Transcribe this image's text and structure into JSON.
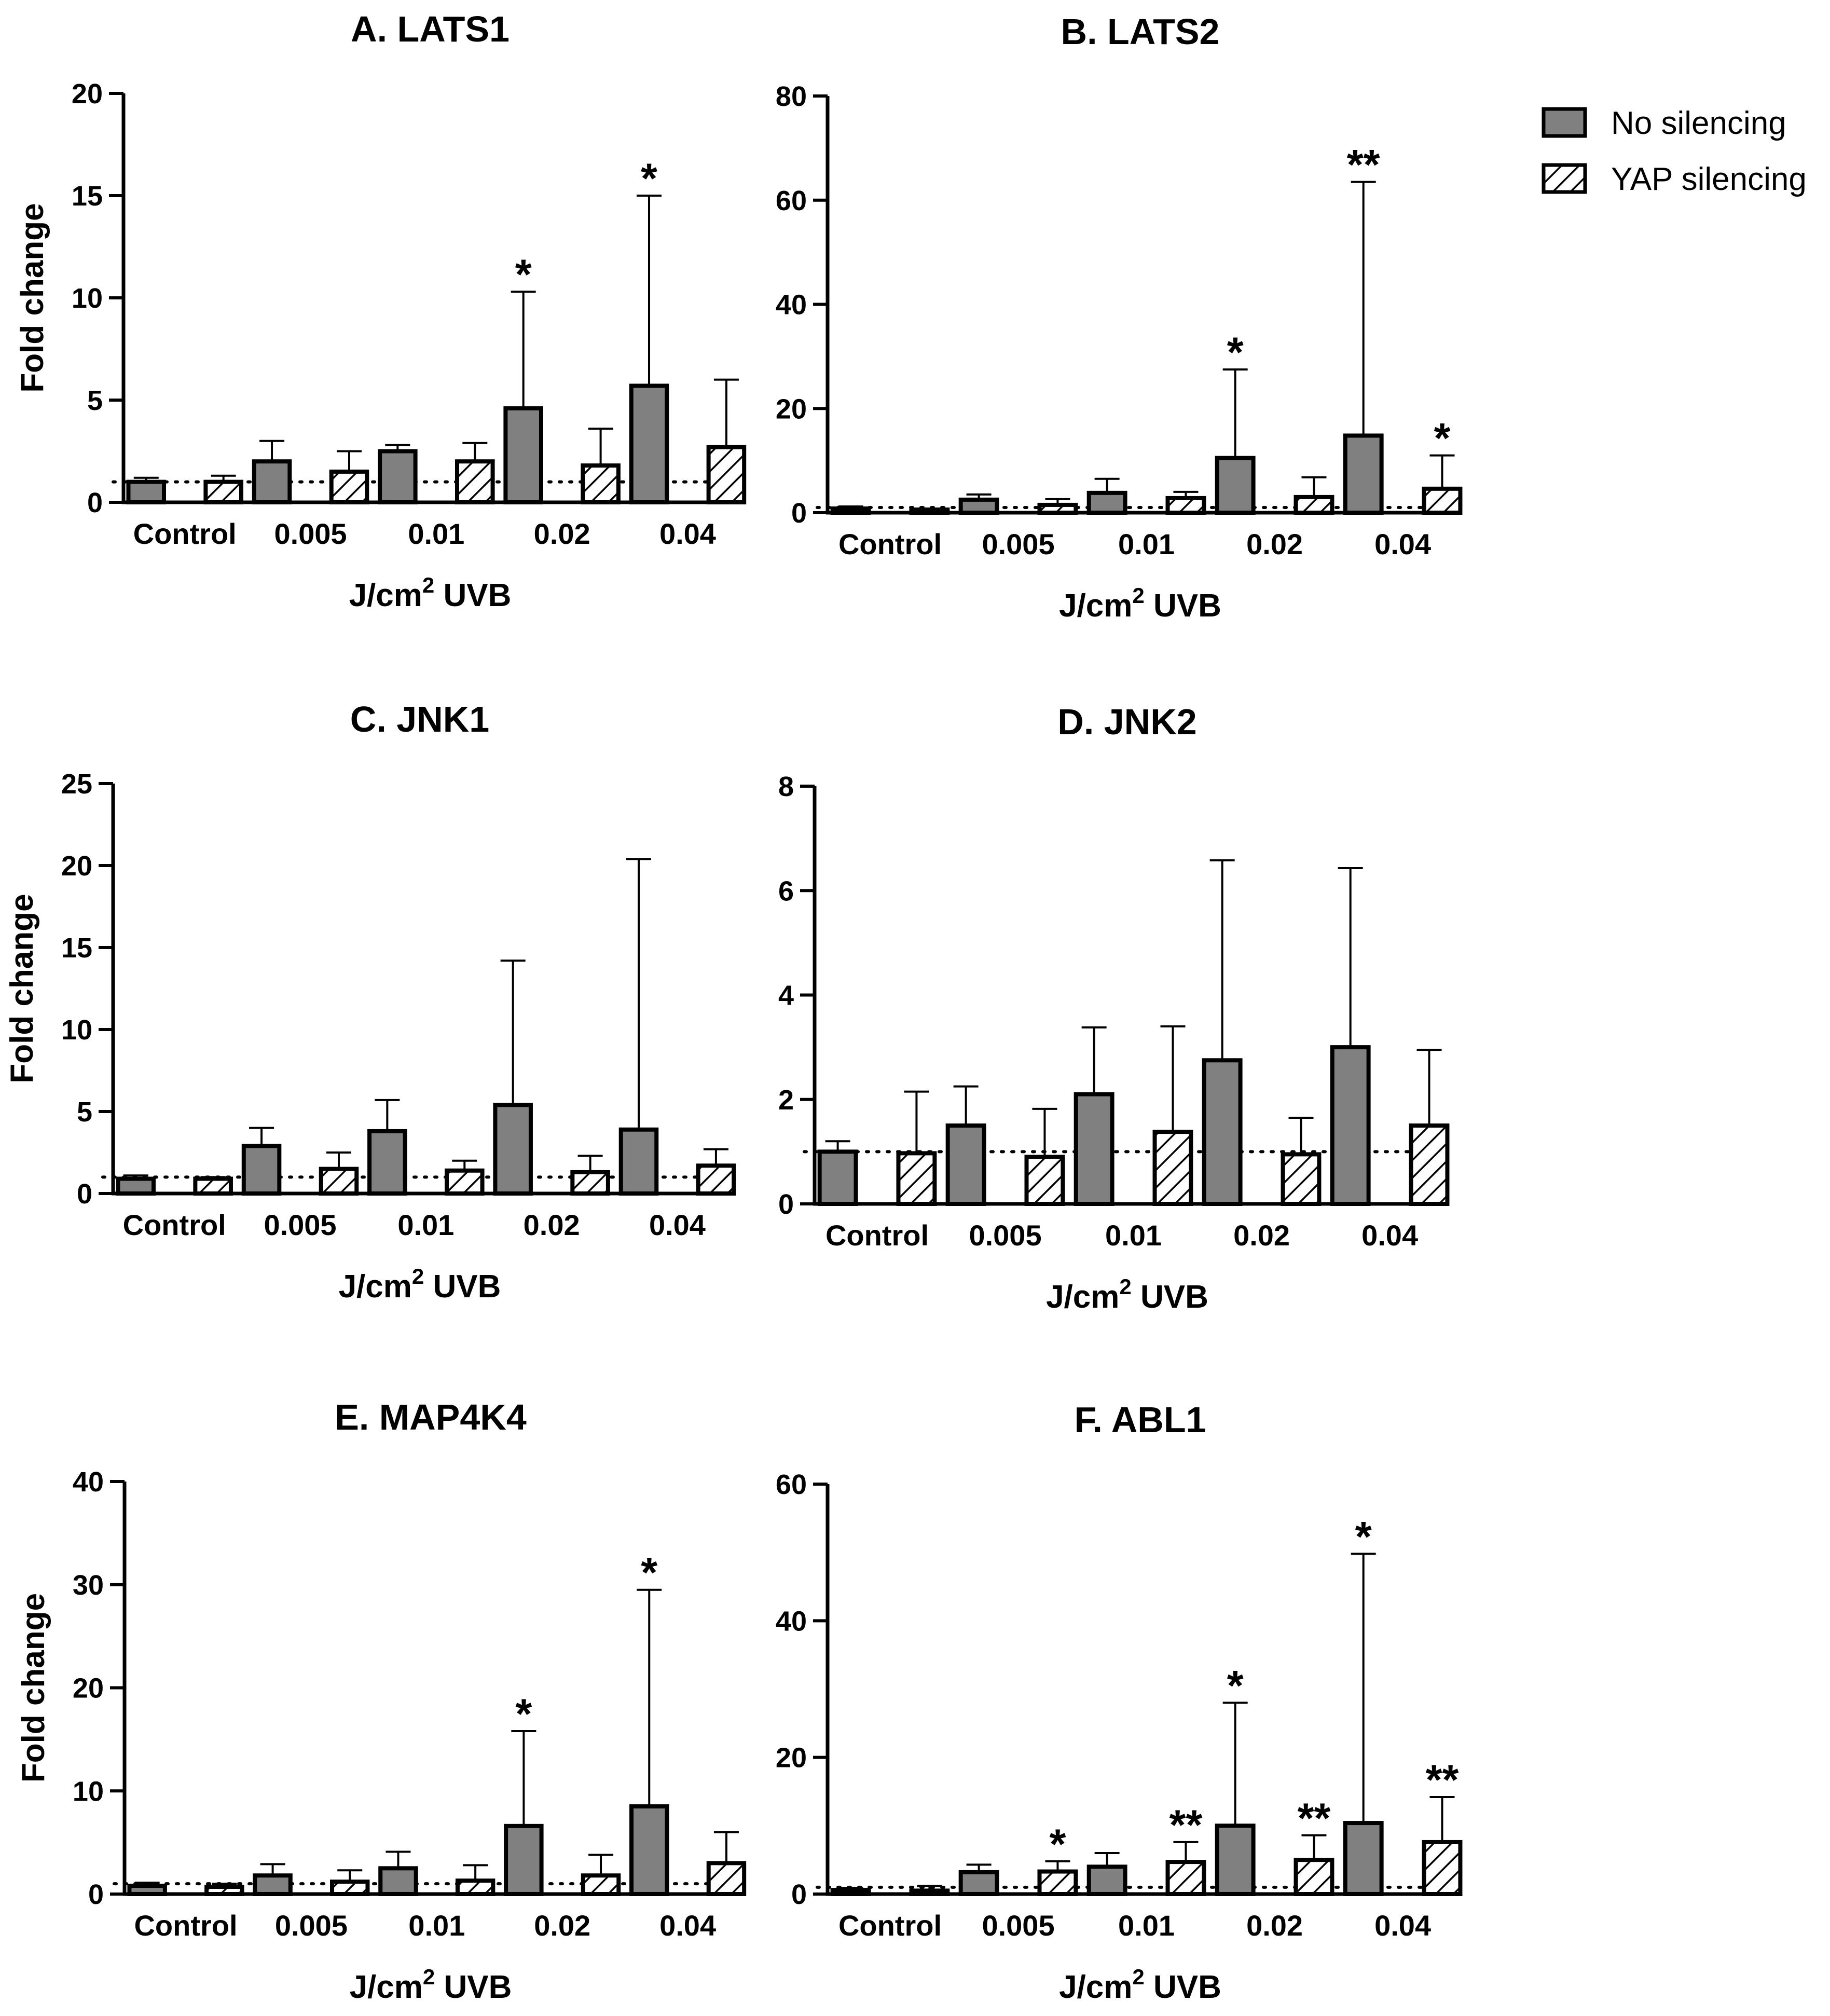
{
  "legend": [
    {
      "label": "No silencing",
      "style": "solid",
      "color": "#808080"
    },
    {
      "label": "YAP silencing",
      "style": "hatched",
      "color": "#ffffff"
    }
  ],
  "reference_line": 1,
  "chart_data": [
    {
      "type": "bar",
      "title": "A. LATS1",
      "xlabel": "J/cm",
      "xlabel_sup": "2",
      "xlabel_suffix": " UVB",
      "ylabel": "Fold change",
      "ylim": [
        0,
        20
      ],
      "yticks": [
        0,
        5,
        10,
        15,
        20
      ],
      "categories": [
        "Control",
        "0.005",
        "0.01",
        "0.02",
        "0.04"
      ],
      "series": [
        {
          "name": "No silencing",
          "values": [
            1.0,
            2.0,
            2.5,
            4.6,
            5.7
          ],
          "err": [
            1.2,
            3.0,
            2.8,
            10.3,
            15.0
          ],
          "sig": [
            "",
            "",
            "",
            "*",
            "*"
          ]
        },
        {
          "name": "YAP silencing",
          "values": [
            1.0,
            1.5,
            2.0,
            1.8,
            2.7
          ],
          "err": [
            1.3,
            2.5,
            2.9,
            3.6,
            6.0
          ],
          "sig": [
            "",
            "",
            "",
            "",
            ""
          ]
        }
      ]
    },
    {
      "type": "bar",
      "title": "B. LATS2",
      "xlabel": "J/cm",
      "xlabel_sup": "2",
      "xlabel_suffix": " UVB",
      "ylabel": "",
      "ylim": [
        0,
        80
      ],
      "yticks": [
        0,
        20,
        40,
        60,
        80
      ],
      "categories": [
        "Control",
        "0.005",
        "0.01",
        "0.02",
        "0.04"
      ],
      "series": [
        {
          "name": "No silencing",
          "values": [
            0.8,
            2.5,
            3.8,
            10.5,
            14.8
          ],
          "err": [
            1.2,
            3.5,
            6.5,
            27.5,
            63.5
          ],
          "sig": [
            "",
            "",
            "",
            "*",
            "**"
          ]
        },
        {
          "name": "YAP silencing",
          "values": [
            0.6,
            1.5,
            2.8,
            3.0,
            4.6
          ],
          "err": [
            0.8,
            2.6,
            4.0,
            6.8,
            11.0
          ],
          "sig": [
            "",
            "",
            "",
            "",
            "*"
          ]
        }
      ]
    },
    {
      "type": "bar",
      "title": "C. JNK1",
      "xlabel": "J/cm",
      "xlabel_sup": "2",
      "xlabel_suffix": " UVB",
      "ylabel": "Fold change",
      "ylim": [
        0,
        25
      ],
      "yticks": [
        0,
        5,
        10,
        15,
        20,
        25
      ],
      "categories": [
        "Control",
        "0.005",
        "0.01",
        "0.02",
        "0.04"
      ],
      "series": [
        {
          "name": "No silencing",
          "values": [
            0.9,
            2.9,
            3.8,
            5.4,
            3.9
          ],
          "err": [
            1.1,
            4.0,
            5.7,
            14.2,
            20.4
          ],
          "sig": [
            "",
            "",
            "",
            "",
            ""
          ]
        },
        {
          "name": "YAP silencing",
          "values": [
            0.9,
            1.5,
            1.4,
            1.3,
            1.7
          ],
          "err": [
            1.0,
            2.5,
            2.0,
            2.3,
            2.7
          ],
          "sig": [
            "",
            "",
            "",
            "",
            ""
          ]
        }
      ]
    },
    {
      "type": "bar",
      "title": "D. JNK2",
      "xlabel": "J/cm",
      "xlabel_sup": "2",
      "xlabel_suffix": " UVB",
      "ylabel": "",
      "ylim": [
        0,
        8
      ],
      "yticks": [
        0,
        2,
        4,
        6,
        8
      ],
      "categories": [
        "Control",
        "0.005",
        "0.01",
        "0.02",
        "0.04"
      ],
      "series": [
        {
          "name": "No silencing",
          "values": [
            1.0,
            1.5,
            2.1,
            2.75,
            3.0
          ],
          "err": [
            1.2,
            2.25,
            3.38,
            6.58,
            6.43
          ],
          "sig": [
            "",
            "",
            "",
            "",
            ""
          ]
        },
        {
          "name": "YAP silencing",
          "values": [
            0.97,
            0.9,
            1.38,
            0.95,
            1.5
          ],
          "err": [
            2.15,
            1.82,
            3.4,
            1.65,
            2.95
          ],
          "sig": [
            "",
            "",
            "",
            "",
            ""
          ]
        }
      ]
    },
    {
      "type": "bar",
      "title": "E. MAP4K4",
      "xlabel": "J/cm",
      "xlabel_sup": "2",
      "xlabel_suffix": " UVB",
      "ylabel": "Fold change",
      "ylim": [
        0,
        40
      ],
      "yticks": [
        0,
        10,
        20,
        30,
        40
      ],
      "categories": [
        "Control",
        "0.005",
        "0.01",
        "0.02",
        "0.04"
      ],
      "series": [
        {
          "name": "No silencing",
          "values": [
            0.8,
            1.8,
            2.5,
            6.6,
            8.5
          ],
          "err": [
            1.1,
            2.9,
            4.1,
            15.8,
            29.5
          ],
          "sig": [
            "",
            "",
            "",
            "*",
            "*"
          ]
        },
        {
          "name": "YAP silencing",
          "values": [
            0.7,
            1.2,
            1.3,
            1.8,
            3.0
          ],
          "err": [
            1.0,
            2.3,
            2.8,
            3.8,
            6.0
          ],
          "sig": [
            "",
            "",
            "",
            "",
            ""
          ]
        }
      ]
    },
    {
      "type": "bar",
      "title": "F. ABL1",
      "xlabel": "J/cm",
      "xlabel_sup": "2",
      "xlabel_suffix": " UVB",
      "ylabel": "",
      "ylim": [
        0,
        60
      ],
      "yticks": [
        0,
        20,
        40,
        60
      ],
      "categories": [
        "Control",
        "0.005",
        "0.01",
        "0.02",
        "0.04"
      ],
      "series": [
        {
          "name": "No silencing",
          "values": [
            0.6,
            3.2,
            4.0,
            10.0,
            10.4
          ],
          "err": [
            0.9,
            4.3,
            6.0,
            28.0,
            49.8
          ],
          "sig": [
            "",
            "",
            "",
            "*",
            "*"
          ]
        },
        {
          "name": "YAP silencing",
          "values": [
            0.5,
            3.3,
            4.7,
            5.0,
            7.6
          ],
          "err": [
            1.2,
            4.8,
            7.6,
            8.6,
            14.2
          ],
          "sig": [
            "",
            "*",
            "**",
            "**",
            "**"
          ]
        }
      ]
    }
  ]
}
